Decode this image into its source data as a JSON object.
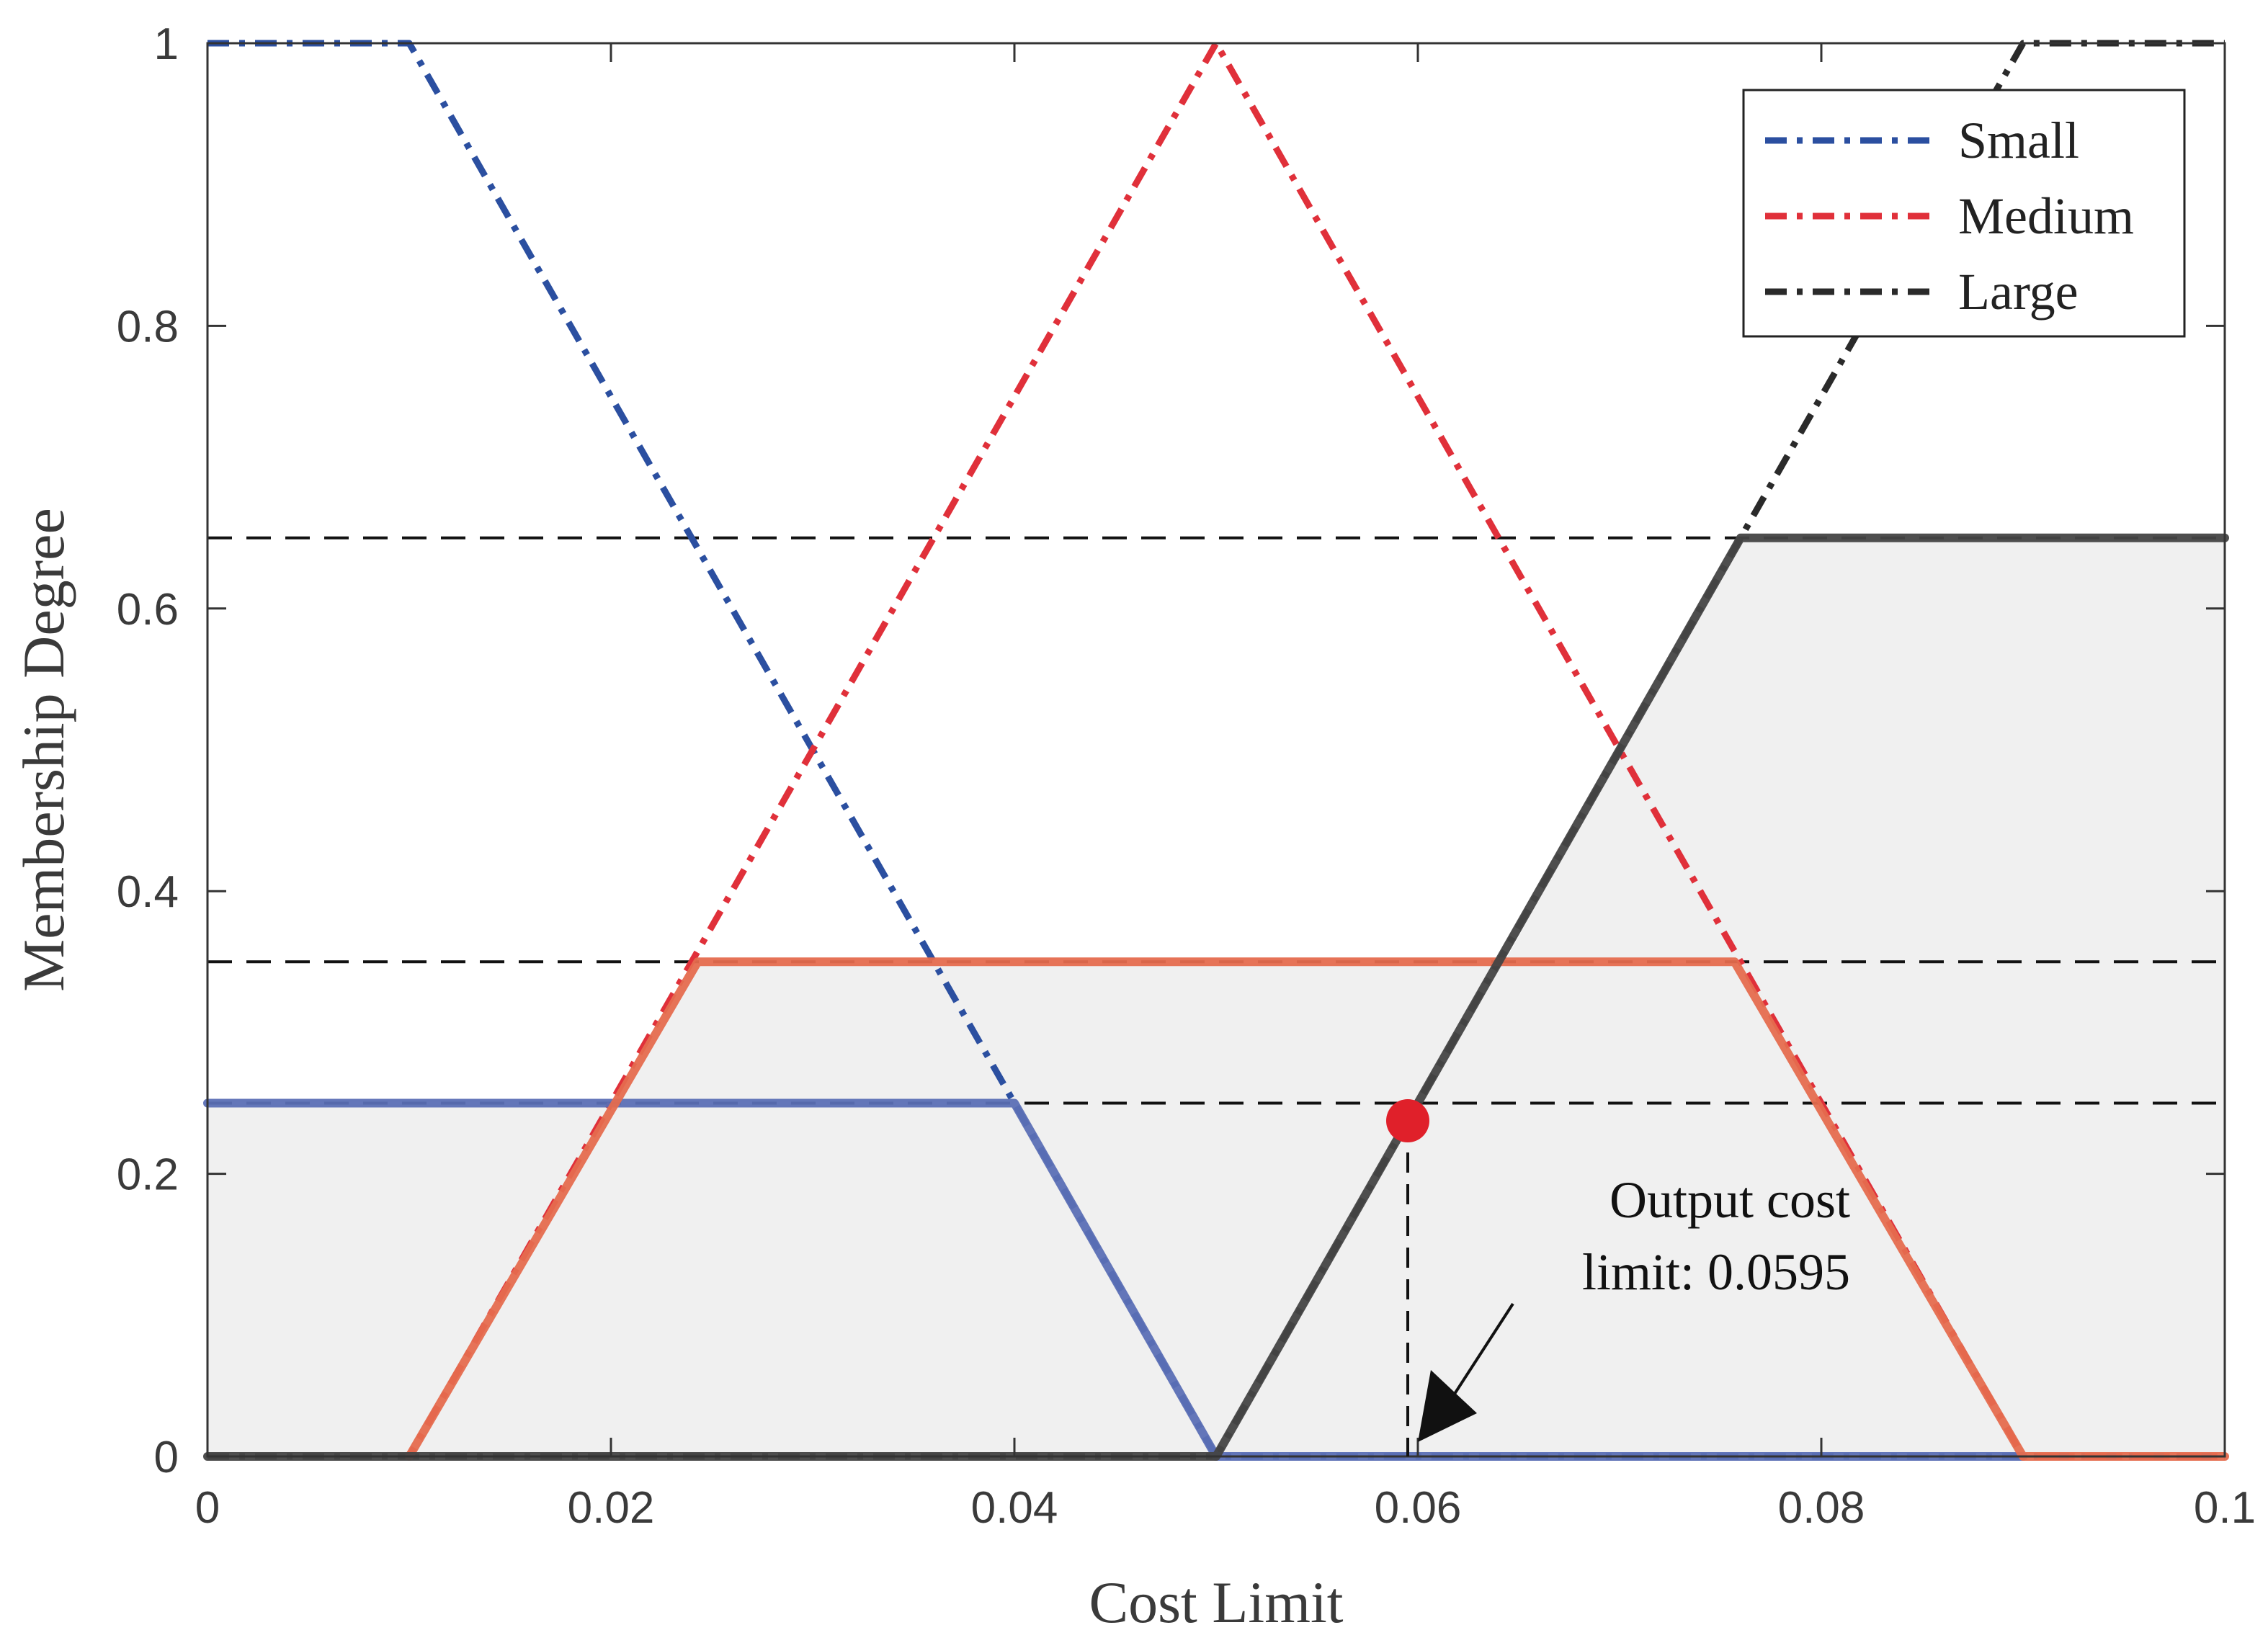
{
  "chart_data": {
    "type": "line",
    "title": "",
    "xlabel": "Cost Limit",
    "ylabel": "Membership Degree",
    "xlim": [
      0,
      0.1
    ],
    "ylim": [
      0,
      1
    ],
    "xticks": [
      0,
      0.02,
      0.04,
      0.06,
      0.08,
      0.1
    ],
    "xtick_labels": [
      "0",
      "0.02",
      "0.04",
      "0.06",
      "0.08",
      "0.1"
    ],
    "yticks": [
      0,
      0.2,
      0.4,
      0.6,
      0.8,
      1
    ],
    "ytick_labels": [
      "0",
      "0.2",
      "0.4",
      "0.6",
      "0.8",
      "1"
    ],
    "grid": false,
    "legend_position": "top-right",
    "series": [
      {
        "name": "Small",
        "style": "dash-dot",
        "color": "#2b4fa0",
        "x": [
          0,
          0.01,
          0.05,
          0.1
        ],
        "y": [
          1,
          1,
          0,
          0
        ]
      },
      {
        "name": "Medium",
        "style": "dash-dot",
        "color": "#e0303a",
        "x": [
          0,
          0.01,
          0.05,
          0.09,
          0.1
        ],
        "y": [
          0,
          0,
          1,
          0,
          0
        ]
      },
      {
        "name": "Large",
        "style": "dash-dot",
        "color": "#2a2a2a",
        "x": [
          0,
          0.05,
          0.09,
          0.1
        ],
        "y": [
          0,
          0,
          1,
          1
        ]
      }
    ],
    "clipped_series": [
      {
        "clip_level": 0.25,
        "color": "#5b6fb5",
        "x": [
          0,
          0.04,
          0.05,
          0.09
        ],
        "y": [
          0.25,
          0.25,
          0,
          0
        ]
      },
      {
        "clip_level": 0.35,
        "color": "#e56b4e",
        "x": [
          0.01,
          0.0243,
          0.0757,
          0.09,
          0.1
        ],
        "y": [
          0,
          0.35,
          0.35,
          0,
          0
        ]
      },
      {
        "clip_level": 0.65,
        "color": "#444444",
        "x": [
          0,
          0.05,
          0.076,
          0.1
        ],
        "y": [
          0,
          0,
          0.65,
          0.65
        ]
      }
    ],
    "aggregated_area": {
      "color": "#f0f0f0",
      "x": [
        0,
        0.02,
        0.0243,
        0.0357,
        0.0643,
        0.076,
        0.1
      ],
      "y": [
        0.25,
        0.25,
        0.35,
        0.35,
        0.35,
        0.65,
        0.65
      ]
    },
    "reference_levels": [
      0.25,
      0.35,
      0.65
    ],
    "output_point": {
      "x": 0.0595,
      "y": 0.2375,
      "color": "#e0202a"
    },
    "annotation": {
      "lines": [
        "Output cost",
        "limit: 0.0595"
      ],
      "arrow_target": {
        "x": 0.0595,
        "y": 0
      }
    }
  }
}
